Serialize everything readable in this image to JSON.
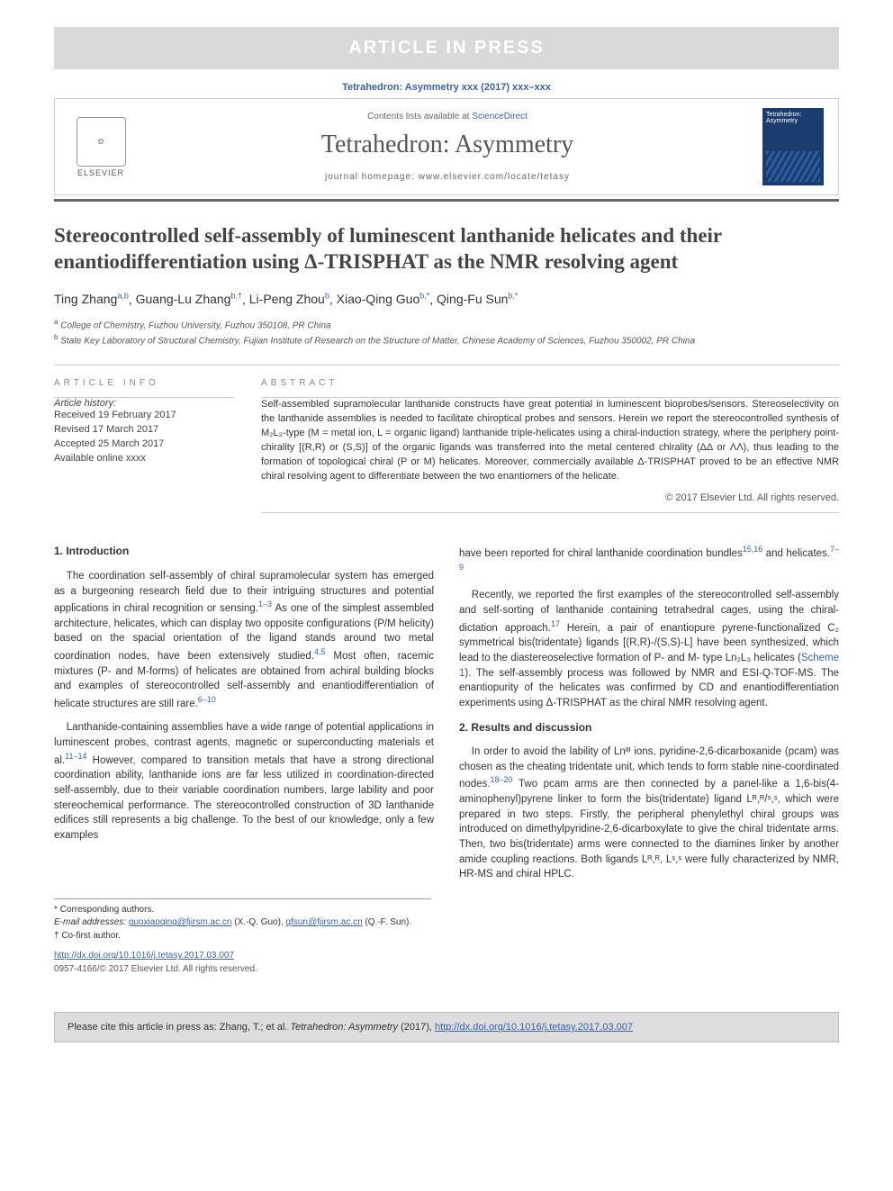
{
  "banner": "ARTICLE IN PRESS",
  "journal_ref": "Tetrahedron: Asymmetry xxx (2017) xxx–xxx",
  "header": {
    "contents_prefix": "Contents lists available at ",
    "contents_link": "ScienceDirect",
    "journal_name": "Tetrahedron: Asymmetry",
    "homepage_label": "journal homepage: www.elsevier.com/locate/tetasy",
    "elsevier": "ELSEVIER",
    "cover_title": "Tetrahedron: Asymmetry"
  },
  "title": "Stereocontrolled self-assembly of luminescent lanthanide helicates and their enantiodifferentiation using Δ-TRISPHAT as the NMR resolving agent",
  "authors_html": "Ting Zhang|a,b| , Guang-Lu Zhang|b,†| , Li-Peng Zhou|b| , Xiao-Qing Guo|b,*| , Qing-Fu Sun|b,*|",
  "authors": [
    {
      "name": "Ting Zhang",
      "sup": "a,b"
    },
    {
      "name": "Guang-Lu Zhang",
      "sup": "b,†"
    },
    {
      "name": "Li-Peng Zhou",
      "sup": "b"
    },
    {
      "name": "Xiao-Qing Guo",
      "sup": "b,*"
    },
    {
      "name": "Qing-Fu Sun",
      "sup": "b,*"
    }
  ],
  "affiliations": {
    "a": "College of Chemistry, Fuzhou University, Fuzhou 350108, PR China",
    "b": "State Key Laboratory of Structural Chemistry, Fujian Institute of Research on the Structure of Matter, Chinese Academy of Sciences, Fuzhou 350002, PR China"
  },
  "article_info": {
    "label": "ARTICLE INFO",
    "history_label": "Article history:",
    "received": "Received 19 February 2017",
    "revised": "Revised 17 March 2017",
    "accepted": "Accepted 25 March 2017",
    "online": "Available online xxxx"
  },
  "abstract": {
    "label": "ABSTRACT",
    "text": "Self-assembled supramolecular lanthanide constructs have great potential in luminescent bioprobes/sensors. Stereoselectivity on the lanthanide assemblies is needed to facilitate chiroptical probes and sensors. Herein we report the stereocontrolled synthesis of M₂L₃-type (M = metal ion, L = organic ligand) lanthanide triple-helicates using a chiral-induction strategy, where the periphery point-chirality [(R,R) or (S,S)] of the organic ligands was transferred into the metal centered chirality (ΔΔ or ΛΛ), thus leading to the formation of topological chiral (P or M) helicates. Moreover, commercially available Δ-TRISPHAT proved to be an effective NMR chiral resolving agent to differentiate between the two enantiomers of the helicate.",
    "copyright": "© 2017 Elsevier Ltd. All rights reserved."
  },
  "body": {
    "s1_title": "1. Introduction",
    "s1_p1": "The coordination self-assembly of chiral supramolecular system has emerged as a burgeoning research field due to their intriguing structures and potential applications in chiral recognition or sensing.|1–3| As one of the simplest assembled architecture, helicates, which can display two opposite configurations (P/M helicity) based on the spacial orientation of the ligand stands around two metal coordination nodes, have been extensively studied.|4,5| Most often, racemic mixtures (P- and M-forms) of helicates are obtained from achiral building blocks and examples of stereocontrolled self-assembly and enantiodifferentiation of helicate structures are still rare.|6–10|",
    "s1_p2": "Lanthanide-containing assemblies have a wide range of potential applications in luminescent probes, contrast agents, magnetic or superconducting materials et al.|11–14| However, compared to transition metals that have a strong directional coordination ability, lanthanide ions are far less utilized in coordination-directed self-assembly, due to their variable coordination numbers, large lability and poor stereochemical performance. The stereocontrolled construction of 3D lanthanide edifices still represents a big challenge. To the best of our knowledge, only a few examples",
    "s1_p3a": "have been reported for chiral lanthanide coordination bundles|15,16| and helicates.|7–9|",
    "s1_p3": "Recently, we reported the first examples of the stereocontrolled self-assembly and self-sorting of lanthanide containing tetrahedral cages, using the chiral-dictation approach.|17| Herein, a pair of enantiopure pyrene-functionalized C₂ symmetrical bis(tridentate) ligands [(R,R)-/(S,S)-L] have been synthesized, which lead to the diastereoselective formation of P- and M- type Ln₂L₃ helicates (|Scheme 1|). The self-assembly process was followed by NMR and ESI-Q-TOF-MS. The enantiopurity of the helicates was confirmed by CD and enantiodifferentiation experiments using Δ-TRISPHAT as the chiral NMR resolving agent.",
    "s2_title": "2. Results and discussion",
    "s2_p1": "In order to avoid the lability of Lnᴵᴵᴵ ions, pyridine-2,6-dicarboxanide (pcam) was chosen as the cheating tridentate unit, which tends to form stable nine-coordinated nodes.|18–20| Two pcam arms are then connected by a panel-like a 1,6-bis(4-aminophenyl)pyrene linker to form the bis(tridentate) ligand Lᴿ,ᴿ/ˢ,ˢ, which were prepared in two steps. Firstly, the peripheral phenylethyl chiral groups was introduced on dimethylpyridine-2,6-dicarboxylate to give the chiral tridentate arms. Then, two bis(tridentate) arms were connected to the diamines linker by another amide coupling reactions. Both ligands Lᴿ,ᴿ, Lˢ,ˢ were fully characterized by NMR, HR-MS and chiral HPLC."
  },
  "footnotes": {
    "corr": "* Corresponding authors.",
    "email_label": "E-mail addresses:",
    "email1": "guoxiaoqing@fjirsm.ac.cn",
    "email1_who": " (X.-Q. Guo), ",
    "email2": "qfsun@fjirsm.ac.cn",
    "email2_who": " (Q.-F. Sun).",
    "cofirst": "† Co-first author."
  },
  "doi": {
    "url": "http://dx.doi.org/10.1016/j.tetasy.2017.03.007",
    "issn": "0957-4166/© 2017 Elsevier Ltd. All rights reserved."
  },
  "citation": {
    "prefix": "Please cite this article in press as: Zhang, T.; et al. ",
    "journal": "Tetrahedron: Asymmetry",
    "year": " (2017), ",
    "doi": "http://dx.doi.org/10.1016/j.tetasy.2017.03.007"
  },
  "colors": {
    "banner_bg": "#d9d9d9",
    "banner_fg": "#ffffff",
    "link": "#3a63a8",
    "rule": "#666666",
    "citebox_bg": "#dddddd",
    "cover_bg": "#1a3c6e"
  }
}
